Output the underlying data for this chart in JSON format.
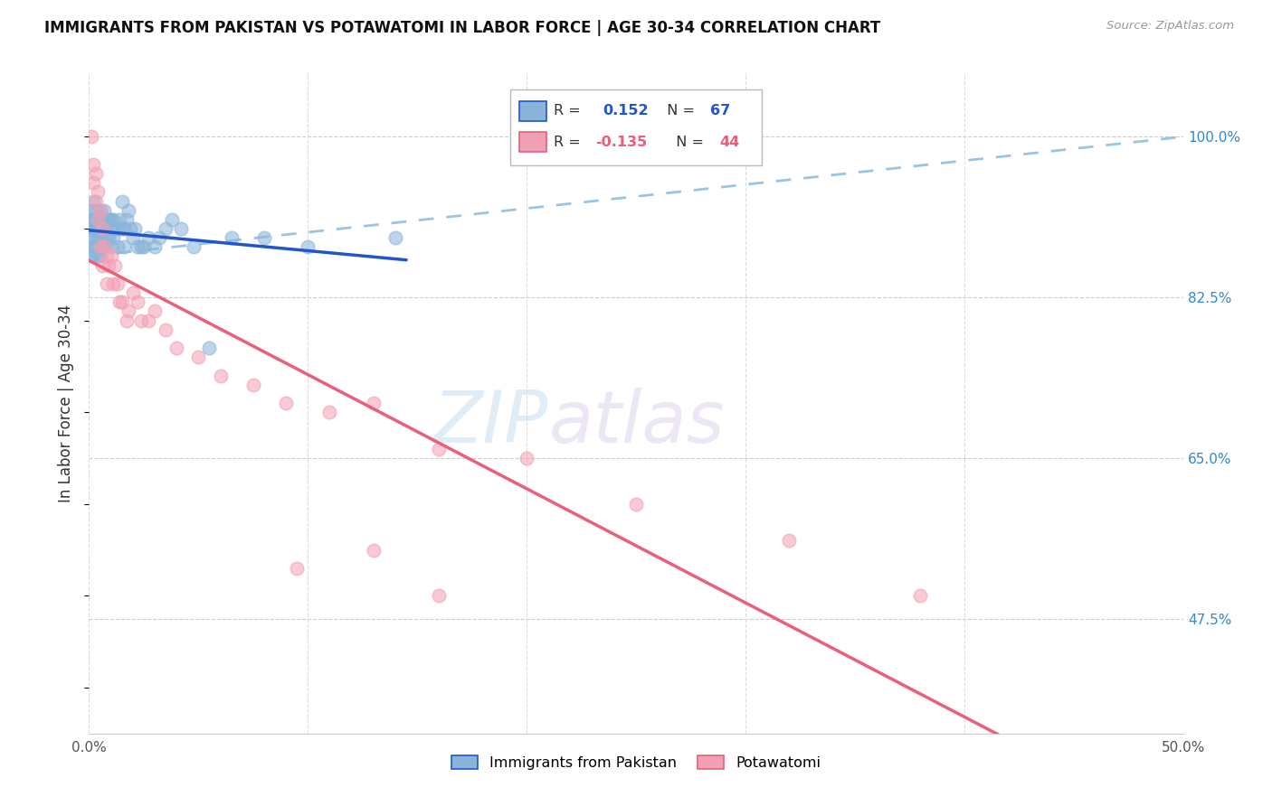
{
  "title": "IMMIGRANTS FROM PAKISTAN VS POTAWATOMI IN LABOR FORCE | AGE 30-34 CORRELATION CHART",
  "source": "Source: ZipAtlas.com",
  "ylabel": "In Labor Force | Age 30-34",
  "x_min": 0.0,
  "x_max": 0.5,
  "y_min": 0.35,
  "y_max": 1.07,
  "x_ticks": [
    0.0,
    0.1,
    0.2,
    0.3,
    0.4,
    0.5
  ],
  "x_tick_labels": [
    "0.0%",
    "",
    "",
    "",
    "",
    "50.0%"
  ],
  "y_tick_labels_right": [
    "100.0%",
    "82.5%",
    "65.0%",
    "47.5%"
  ],
  "y_ticks_right": [
    1.0,
    0.825,
    0.65,
    0.475
  ],
  "pakistan_color": "#8ab4d8",
  "potawatomi_color": "#f2a0b5",
  "pakistan_line_color": "#2255cc",
  "potawatomi_line_color": "#e8607a",
  "pakistan_dashed_color": "#88bbdd",
  "watermark_zip": "ZIP",
  "watermark_atlas": "atlas",
  "pakistan_x": [
    0.001,
    0.001,
    0.001,
    0.001,
    0.001,
    0.001,
    0.002,
    0.002,
    0.002,
    0.002,
    0.002,
    0.003,
    0.003,
    0.003,
    0.003,
    0.003,
    0.004,
    0.004,
    0.004,
    0.004,
    0.005,
    0.005,
    0.005,
    0.005,
    0.006,
    0.006,
    0.006,
    0.007,
    0.007,
    0.007,
    0.008,
    0.008,
    0.009,
    0.009,
    0.01,
    0.01,
    0.01,
    0.011,
    0.011,
    0.012,
    0.013,
    0.013,
    0.014,
    0.015,
    0.015,
    0.016,
    0.016,
    0.017,
    0.018,
    0.019,
    0.02,
    0.021,
    0.022,
    0.024,
    0.025,
    0.027,
    0.03,
    0.032,
    0.035,
    0.038,
    0.042,
    0.048,
    0.055,
    0.065,
    0.08,
    0.1,
    0.14
  ],
  "pakistan_y": [
    0.92,
    0.91,
    0.9,
    0.89,
    0.88,
    0.87,
    0.93,
    0.91,
    0.9,
    0.88,
    0.87,
    0.92,
    0.91,
    0.9,
    0.89,
    0.88,
    0.91,
    0.9,
    0.89,
    0.87,
    0.92,
    0.9,
    0.89,
    0.87,
    0.91,
    0.9,
    0.88,
    0.92,
    0.9,
    0.88,
    0.91,
    0.89,
    0.91,
    0.89,
    0.91,
    0.9,
    0.88,
    0.91,
    0.89,
    0.9,
    0.9,
    0.88,
    0.91,
    0.93,
    0.9,
    0.9,
    0.88,
    0.91,
    0.92,
    0.9,
    0.89,
    0.9,
    0.88,
    0.88,
    0.88,
    0.89,
    0.88,
    0.89,
    0.9,
    0.91,
    0.9,
    0.88,
    0.77,
    0.89,
    0.89,
    0.88,
    0.89
  ],
  "potawatomi_x": [
    0.001,
    0.002,
    0.002,
    0.003,
    0.003,
    0.004,
    0.004,
    0.005,
    0.005,
    0.006,
    0.006,
    0.007,
    0.008,
    0.008,
    0.009,
    0.01,
    0.011,
    0.012,
    0.013,
    0.014,
    0.015,
    0.017,
    0.018,
    0.02,
    0.022,
    0.024,
    0.027,
    0.03,
    0.035,
    0.04,
    0.05,
    0.06,
    0.075,
    0.09,
    0.11,
    0.13,
    0.16,
    0.2,
    0.25,
    0.32,
    0.38,
    0.16,
    0.095,
    0.13
  ],
  "potawatomi_y": [
    1.0,
    0.97,
    0.95,
    0.93,
    0.96,
    0.91,
    0.94,
    0.92,
    0.88,
    0.9,
    0.86,
    0.88,
    0.87,
    0.84,
    0.86,
    0.87,
    0.84,
    0.86,
    0.84,
    0.82,
    0.82,
    0.8,
    0.81,
    0.83,
    0.82,
    0.8,
    0.8,
    0.81,
    0.79,
    0.77,
    0.76,
    0.74,
    0.73,
    0.71,
    0.7,
    0.71,
    0.66,
    0.65,
    0.6,
    0.56,
    0.5,
    0.5,
    0.53,
    0.55
  ]
}
